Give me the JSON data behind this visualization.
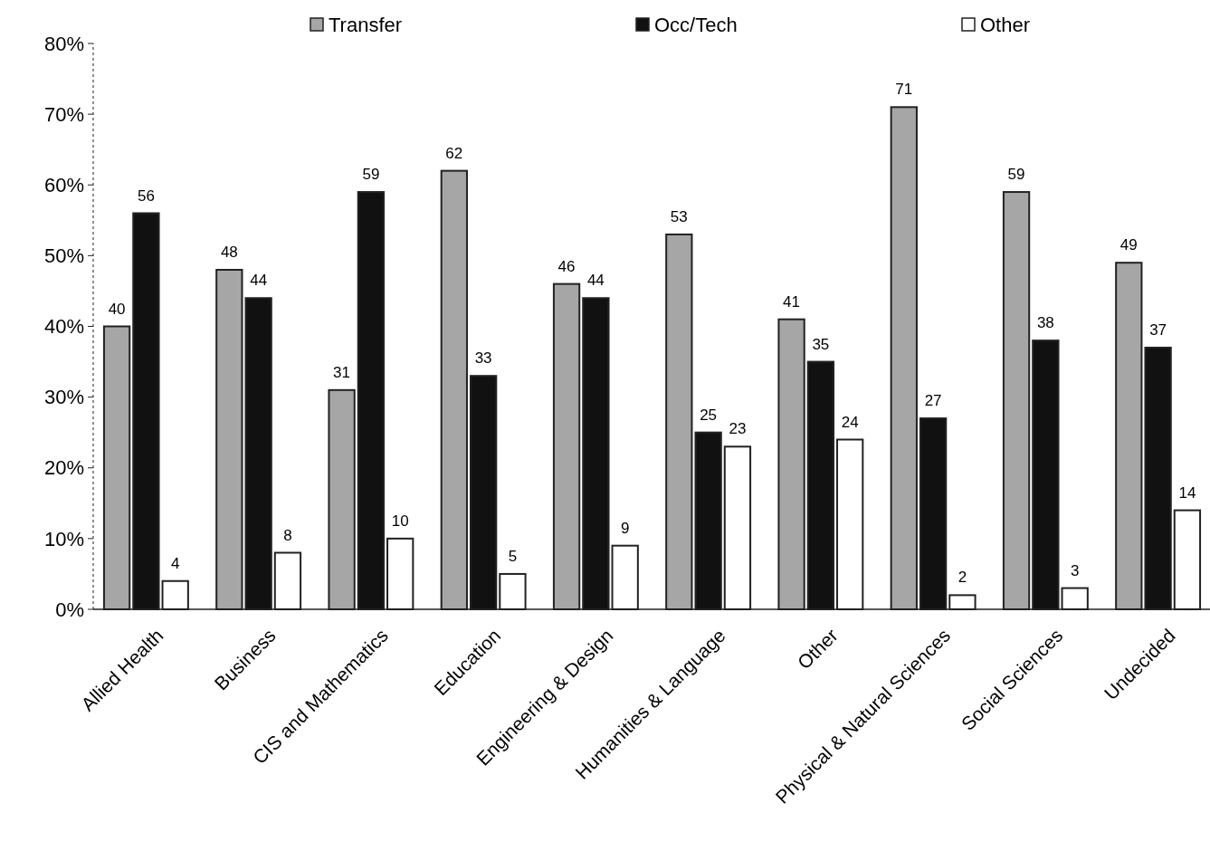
{
  "chart_data": {
    "type": "bar",
    "categories": [
      "Allied Health",
      "Business",
      "CIS and Mathematics",
      "Education",
      "Engineering & Design",
      "Humanities & Language",
      "Other",
      "Physical & Natural Sciences",
      "Social Sciences",
      "Undecided"
    ],
    "series": [
      {
        "name": "Transfer",
        "color": "#a6a6a6",
        "values": [
          40,
          48,
          31,
          62,
          46,
          53,
          41,
          71,
          59,
          49
        ]
      },
      {
        "name": "Occ/Tech",
        "color": "#111111",
        "values": [
          56,
          44,
          59,
          33,
          44,
          25,
          35,
          27,
          38,
          37
        ]
      },
      {
        "name": "Other",
        "color": "#ffffff",
        "values": [
          4,
          8,
          10,
          5,
          9,
          23,
          24,
          2,
          3,
          14
        ]
      }
    ],
    "ylim": [
      0,
      80
    ],
    "yticks": [
      {
        "value": 0,
        "label": "0%"
      },
      {
        "value": 10,
        "label": "10%"
      },
      {
        "value": 20,
        "label": "20%"
      },
      {
        "value": 30,
        "label": "30%"
      },
      {
        "value": 40,
        "label": "40%"
      },
      {
        "value": 50,
        "label": "50%"
      },
      {
        "value": 60,
        "label": "60%"
      },
      {
        "value": 70,
        "label": "70%"
      },
      {
        "value": 80,
        "label": "80%"
      }
    ],
    "data_labels": true,
    "legend": "top",
    "grid": false
  }
}
